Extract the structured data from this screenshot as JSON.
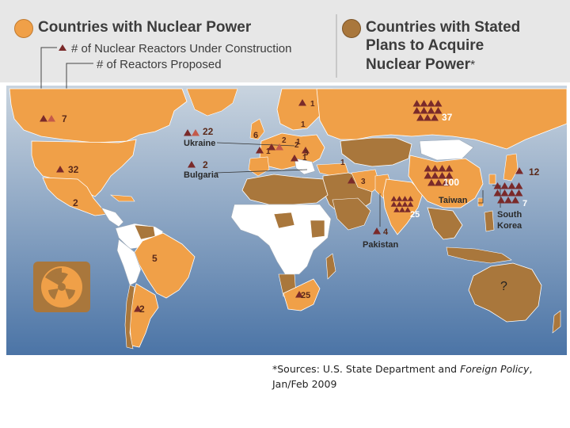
{
  "legend": {
    "nuclear_title": "Countries with Nuclear Power",
    "construction_label": "# of Nuclear Reactors Under Construction",
    "proposed_label": "# of Reactors Proposed",
    "stated_title_line1": "Countries with Stated",
    "stated_title_line2": "Plans to Acquire",
    "stated_title_line3": "Nuclear Power",
    "stated_asterisk": "*"
  },
  "colors": {
    "nuclear": "#f0a048",
    "stated": "#a9773c",
    "other": "#ffffff",
    "marker": "#7a2a2a",
    "ocean_top": "#c9d4df",
    "ocean_bottom": "#4b74a6"
  },
  "markers": [
    {
      "name": "alaska-proposed",
      "value": "7"
    },
    {
      "name": "usa-construction",
      "value": "32"
    },
    {
      "name": "mexico",
      "value": "2"
    },
    {
      "name": "brazil",
      "value": "5"
    },
    {
      "name": "argentina",
      "value": "2"
    },
    {
      "name": "ukraine",
      "value": "22"
    },
    {
      "name": "bulgaria",
      "value": "2"
    },
    {
      "name": "finland",
      "value": "1"
    },
    {
      "name": "russia-west",
      "value": "1"
    },
    {
      "name": "russia",
      "value": "37"
    },
    {
      "name": "uk",
      "value": "6"
    },
    {
      "name": "france",
      "value": "1"
    },
    {
      "name": "europe-a",
      "value": "2"
    },
    {
      "name": "europe-b",
      "value": "2"
    },
    {
      "name": "europe-c",
      "value": "1"
    },
    {
      "name": "europe-d",
      "value": "3"
    },
    {
      "name": "europe-e",
      "value": "1"
    },
    {
      "name": "turkey",
      "value": "1"
    },
    {
      "name": "iran",
      "value": "3"
    },
    {
      "name": "china",
      "value": "100"
    },
    {
      "name": "japan",
      "value": "12"
    },
    {
      "name": "south-korea",
      "value": "7"
    },
    {
      "name": "india",
      "value": "25"
    },
    {
      "name": "pakistan",
      "value": "4"
    },
    {
      "name": "south-africa",
      "value": "25"
    }
  ],
  "labels": {
    "ukraine": "Ukraine",
    "bulgaria": "Bulgaria",
    "taiwan": "Taiwan",
    "south_korea_1": "South",
    "south_korea_2": "Korea",
    "pakistan": "Pakistan",
    "australia": "?"
  },
  "source": {
    "prefix": "*Sources: U.S. State Department and ",
    "italic": "Foreign Policy",
    "suffix": ",",
    "line2": "Jan/Feb 2009"
  }
}
